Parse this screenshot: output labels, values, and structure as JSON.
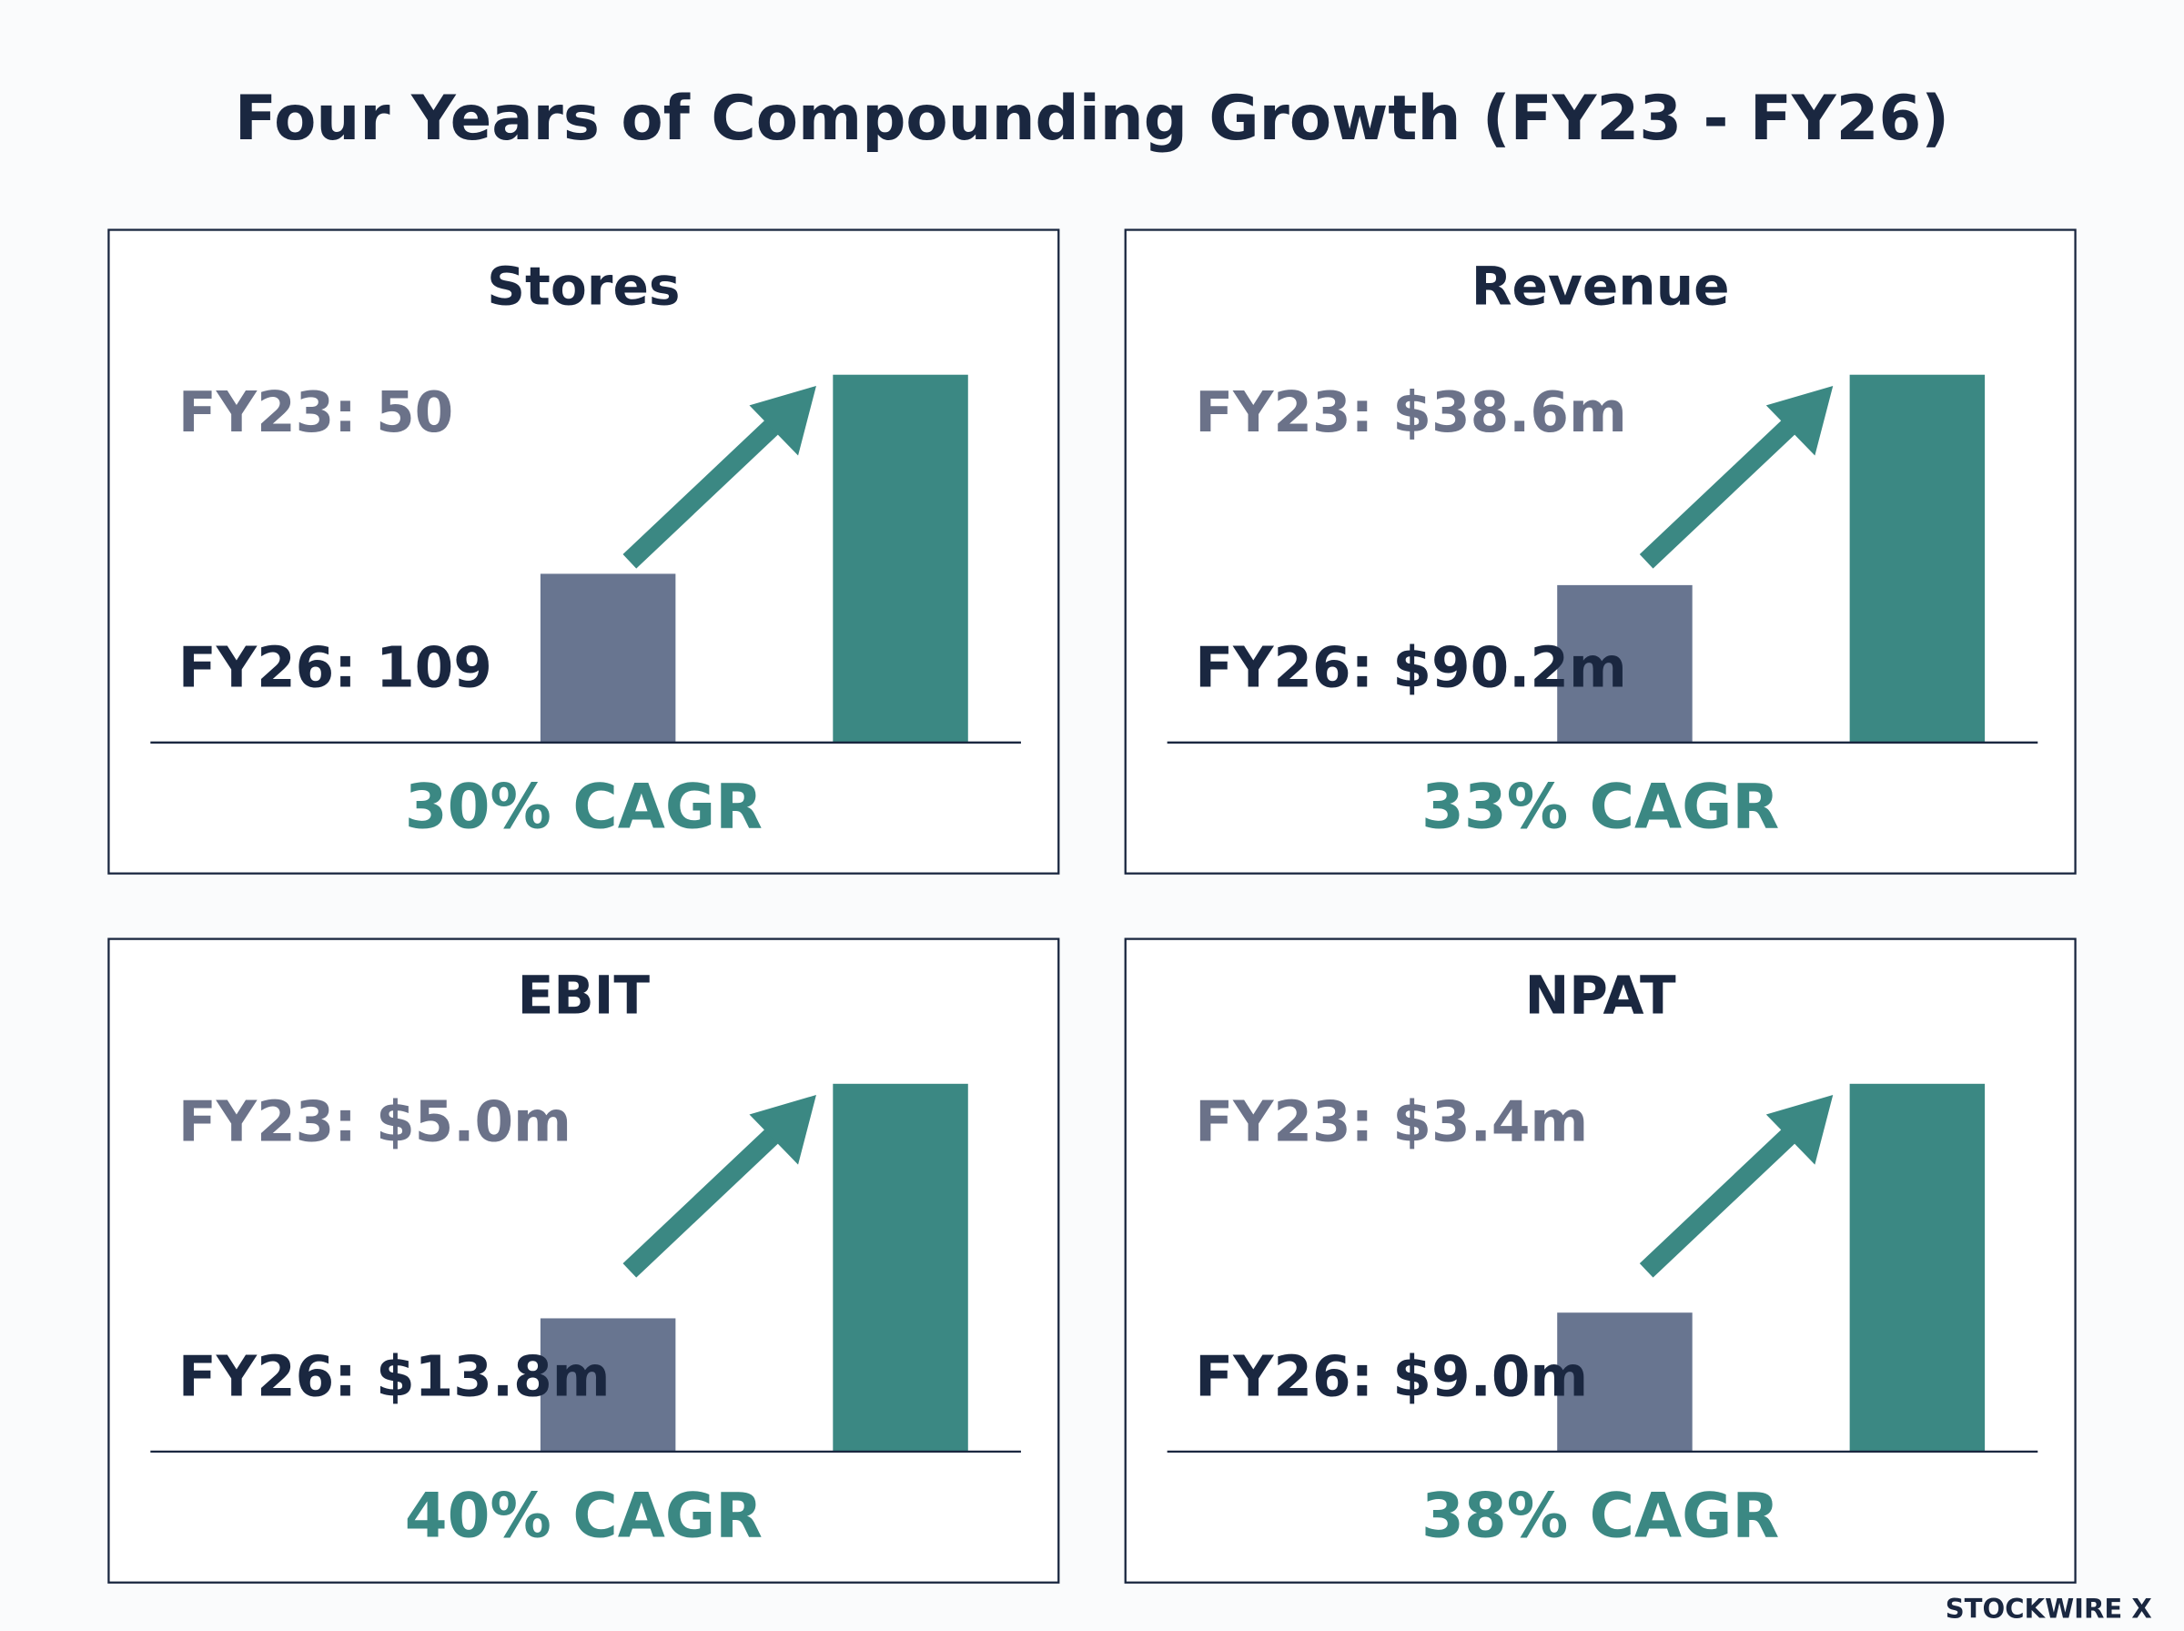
{
  "title": "Four Years of Compounding Growth (FY23 - FY26)",
  "footer": "STOCKWIRE X",
  "chart_data": [
    {
      "type": "bar",
      "title": "Stores",
      "labels": [
        "FY23: 50",
        "FY26: 109"
      ],
      "values": [
        50,
        109
      ],
      "colors": [
        "#687590",
        "#3b8883"
      ],
      "annotation": "30% CAGR"
    },
    {
      "type": "bar",
      "title": "Revenue",
      "labels": [
        "FY23: $38.6m",
        "FY26: $90.2m"
      ],
      "values": [
        38.6,
        90.2
      ],
      "colors": [
        "#687590",
        "#3b8883"
      ],
      "annotation": "33% CAGR"
    },
    {
      "type": "bar",
      "title": "EBIT",
      "labels": [
        "FY23: $5.0m",
        "FY26: $13.8m"
      ],
      "values": [
        5.0,
        13.8
      ],
      "colors": [
        "#687590",
        "#3b8883"
      ],
      "annotation": "40% CAGR"
    },
    {
      "type": "bar",
      "title": "NPAT",
      "labels": [
        "FY23: $3.4m",
        "FY26: $9.0m"
      ],
      "values": [
        3.4,
        9.0
      ],
      "colors": [
        "#687590",
        "#3b8883"
      ],
      "annotation": "38% CAGR"
    }
  ]
}
